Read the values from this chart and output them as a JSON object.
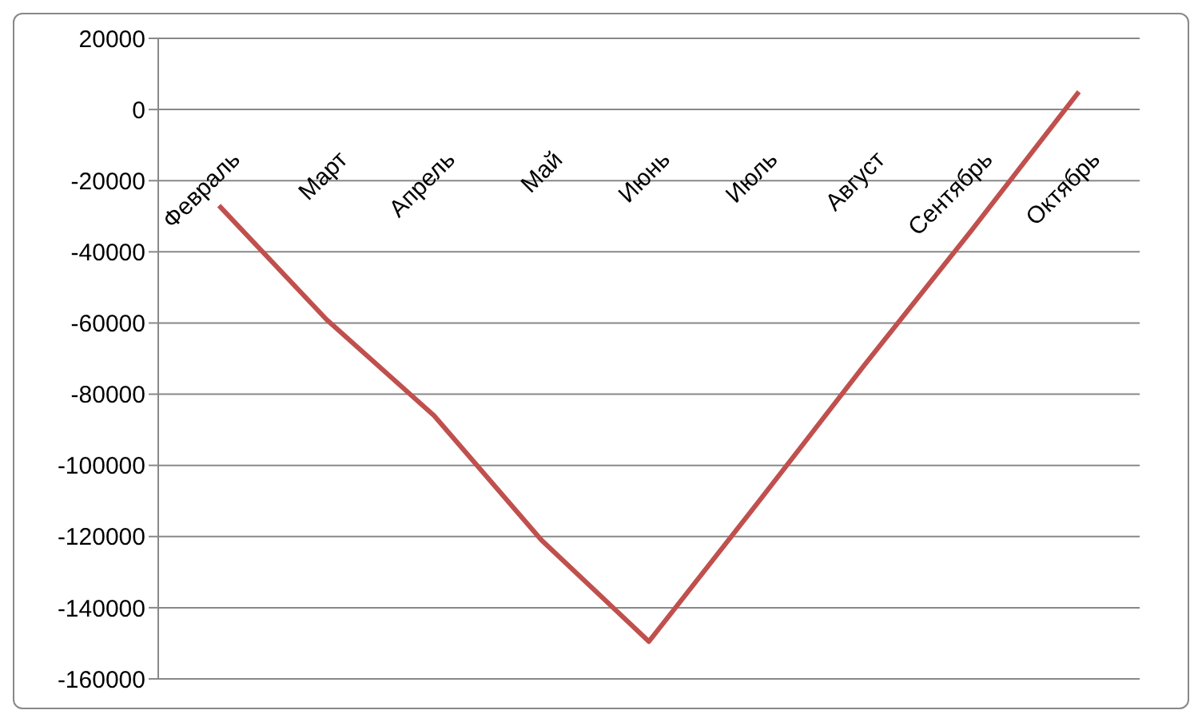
{
  "chart_data": {
    "type": "line",
    "categories": [
      "Февраль",
      "Март",
      "Апрель",
      "Май",
      "Июнь",
      "Июль",
      "Август",
      "Сентябрь",
      "Октябрь"
    ],
    "series": [
      {
        "color": "#c0504d",
        "values": [
          -27000,
          -59000,
          -86000,
          -121000,
          -149500,
          -111000,
          -72000,
          -34000,
          5000
        ]
      }
    ],
    "ylim": [
      -160000,
      20000
    ],
    "yticks": [
      -160000,
      -140000,
      -120000,
      -100000,
      -80000,
      -60000,
      -40000,
      -20000,
      0,
      20000
    ],
    "grid": "y",
    "marker": "none",
    "line_style": "solid",
    "legend": false
  }
}
